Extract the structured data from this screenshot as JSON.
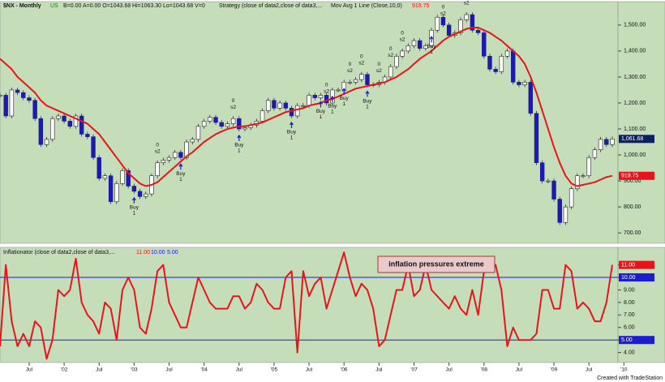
{
  "chart_data": {
    "type": "candlestick",
    "title": "$NX - Monthly",
    "exchange": "US",
    "quote": "B=0.00 A=0.00 O=1043.68 Hi=1063.30 Lo=1043.68 V=0",
    "strategy": "Strategy (close of data2,close of data3,...",
    "buy_label": [
      "Buy",
      "1"
    ],
    "sell_label": [
      "0",
      "s2"
    ],
    "footer": "Created with TradeStation",
    "background": "#c6ddb9",
    "categories": [
      null,
      null,
      null,
      null,
      null,
      "Jul",
      null,
      null,
      null,
      null,
      null,
      "'02",
      null,
      null,
      null,
      null,
      null,
      "Jul",
      null,
      null,
      null,
      null,
      null,
      "'03",
      null,
      null,
      null,
      null,
      null,
      "Jul",
      null,
      null,
      null,
      null,
      null,
      "'04",
      null,
      null,
      null,
      null,
      null,
      "Jul",
      null,
      null,
      null,
      null,
      null,
      "'05",
      null,
      null,
      null,
      null,
      null,
      "Jul",
      null,
      null,
      null,
      null,
      null,
      "'06",
      null,
      null,
      null,
      null,
      null,
      "Jul",
      null,
      null,
      null,
      null,
      null,
      "'07",
      null,
      null,
      null,
      null,
      null,
      "Jul",
      null,
      null,
      null,
      null,
      null,
      "'08",
      null,
      null,
      null,
      null,
      null,
      "Jul",
      null,
      null,
      null,
      null,
      null,
      "'09",
      null,
      null,
      null,
      null,
      null,
      "Jul",
      null,
      null,
      null,
      null,
      null,
      "'10"
    ],
    "series": [
      {
        "name": "$NX",
        "up_color": "#ffffff",
        "color": "#1c1ca8",
        "last_label": "1,061.68",
        "values": [
          1230,
          1150,
          1250,
          1240,
          1220,
          1210,
          1140,
          1040,
          1060,
          1140,
          1150,
          1130,
          1110,
          1150,
          1080,
          1070,
          990,
          910,
          920,
          820,
          890,
          940,
          880,
          860,
          840,
          850,
          920,
          970,
          980,
          990,
          1010,
          990,
          1050,
          1060,
          1110,
          1130,
          1145,
          1125,
          1110,
          1120,
          1140,
          1100,
          1105,
          1115,
          1130,
          1170,
          1210,
          1180,
          1200,
          1180,
          1150,
          1190,
          1190,
          1230,
          1220,
          1230,
          1200,
          1250,
          1250,
          1280,
          1280,
          1290,
          1310,
          1270,
          1270,
          1280,
          1300,
          1340,
          1380,
          1400,
          1420,
          1440,
          1410,
          1420,
          1480,
          1530,
          1500,
          1460,
          1470,
          1520,
          1540,
          1480,
          1470,
          1380,
          1330,
          1320,
          1380,
          1400,
          1280,
          1270,
          1280,
          1160,
          970,
          900,
          900,
          830,
          740,
          800,
          870,
          920,
          920,
          990,
          1020,
          1060,
          1040,
          1061.68,
          null,
          null
        ]
      },
      {
        "name": "Mov Avg 1 Line (Close,10,0)",
        "color": "#e8141c",
        "last_label": "919.75",
        "values": [
          1370,
          1350,
          1330,
          1300,
          1280,
          1260,
          1240,
          1210,
          1190,
          1180,
          1170,
          1160,
          1150,
          1140,
          1130,
          1120,
          1100,
          1080,
          1050,
          1020,
          990,
          960,
          930,
          910,
          890,
          880,
          885,
          895,
          915,
          935,
          955,
          975,
          995,
          1010,
          1030,
          1050,
          1065,
          1080,
          1090,
          1100,
          1105,
          1110,
          1110,
          1115,
          1120,
          1125,
          1135,
          1145,
          1155,
          1165,
          1170,
          1175,
          1180,
          1190,
          1195,
          1200,
          1210,
          1215,
          1225,
          1235,
          1245,
          1255,
          1260,
          1265,
          1270,
          1275,
          1280,
          1290,
          1300,
          1315,
          1330,
          1350,
          1370,
          1385,
          1400,
          1420,
          1440,
          1455,
          1465,
          1475,
          1485,
          1490,
          1490,
          1480,
          1470,
          1455,
          1440,
          1420,
          1400,
          1380,
          1350,
          1300,
          1240,
          1170,
          1100,
          1030,
          970,
          920,
          890,
          880,
          885,
          890,
          895,
          905,
          915,
          919.75,
          null,
          null
        ]
      }
    ],
    "ylim": [
      660,
      1590
    ],
    "yticks": [
      {
        "value": 700,
        "label": "700.00"
      },
      {
        "value": 800,
        "label": "800.00"
      },
      {
        "value": 900,
        "label": "900.00"
      },
      {
        "value": 1000,
        "label": "1,000.00"
      },
      {
        "value": 1100,
        "label": "1,100.00"
      },
      {
        "value": 1200,
        "label": "1,200.00"
      },
      {
        "value": 1300,
        "label": "1,300.00"
      },
      {
        "value": 1400,
        "label": "1,400.00"
      },
      {
        "value": 1500,
        "label": "1,500.00"
      }
    ],
    "indicator": {
      "type": "line",
      "title": "Inflationator (close of data2,close of data3,...",
      "annotation": "inflation pressures extreme",
      "series": [
        {
          "name": "Inflationator",
          "color": "#e8141c",
          "last_label": "11.00",
          "values": [
            4.5,
            11,
            6.5,
            4.5,
            5.5,
            4.5,
            6.5,
            6,
            3.5,
            5,
            9,
            8.5,
            9,
            11.5,
            8,
            7,
            6.5,
            5.5,
            8,
            7.5,
            5,
            9,
            10,
            9,
            6,
            5.5,
            7.5,
            10.5,
            11,
            8,
            7,
            6,
            6,
            8,
            10,
            9,
            8,
            7.5,
            7.5,
            7.5,
            8.5,
            8.5,
            7.5,
            8,
            9.5,
            9,
            8,
            7.5,
            7.5,
            10,
            10.5,
            4,
            10.5,
            8.5,
            9.5,
            10,
            7.5,
            9,
            10.5,
            12,
            10,
            8.5,
            9.5,
            9,
            7.5,
            4.5,
            5,
            7,
            9,
            9,
            11,
            8.5,
            9,
            11,
            9,
            8.5,
            8,
            7.5,
            8.5,
            7.5,
            7,
            9,
            7,
            10.5,
            10.5,
            11,
            9,
            4.5,
            6,
            5,
            5,
            5,
            5.5,
            9,
            9,
            7.5,
            7.5,
            11,
            10.5,
            7.5,
            8,
            7.5,
            6.5,
            6.5,
            8,
            11,
            null,
            null
          ]
        }
      ],
      "hlines": [
        {
          "value": 10,
          "label": "10.00",
          "color": "#1c1cd0"
        },
        {
          "value": 5,
          "label": "5.00",
          "color": "#1c1cd0"
        }
      ],
      "ylim": [
        3.2,
        12.4
      ],
      "yticks": [
        {
          "value": 4,
          "label": "4.00"
        },
        {
          "value": 5,
          "label": "5.00"
        },
        {
          "value": 6,
          "label": "6.00"
        },
        {
          "value": 7,
          "label": "7.00"
        },
        {
          "value": 8,
          "label": "8.00"
        },
        {
          "value": 9,
          "label": "9.00"
        },
        {
          "value": 10,
          "label": "10.00"
        },
        {
          "value": 11,
          "label": "11.00"
        }
      ]
    }
  }
}
